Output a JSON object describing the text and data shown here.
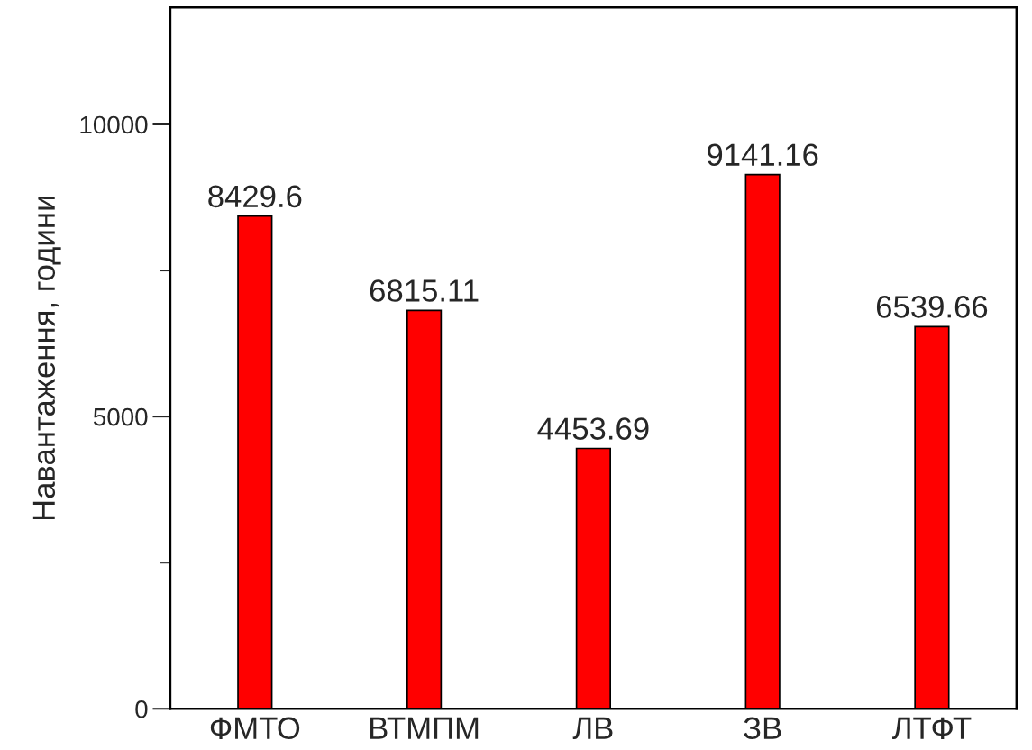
{
  "chart_data": {
    "type": "bar",
    "ylabel": "Навантаження, години",
    "categories": [
      "ФМТО",
      "ВТМПМ",
      "ЛВ",
      "ЗВ",
      "ЛТФТ"
    ],
    "values": [
      8429.6,
      6815.11,
      4453.69,
      9141.16,
      6539.66
    ],
    "color": "#ff0000",
    "ylim": [
      0,
      12000
    ],
    "yticks": [
      0,
      {
        "value": 2500,
        "label": null
      },
      5000,
      {
        "value": 7500,
        "label": null
      },
      10000
    ],
    "data_labels": true,
    "grid": false
  }
}
